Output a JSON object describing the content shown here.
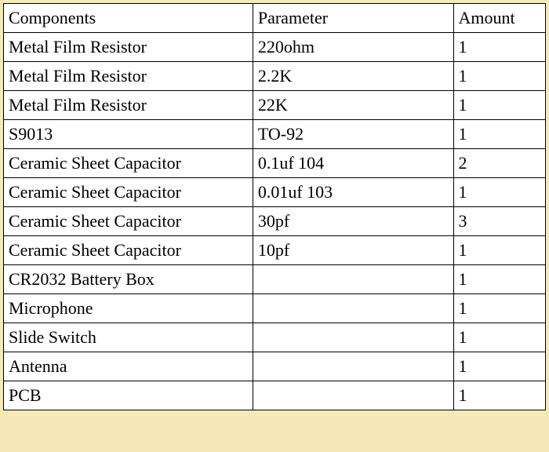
{
  "table": {
    "type": "table",
    "background_color": "#ffffff",
    "border_color": "#000000",
    "text_color": "#000000",
    "font_family": "Times New Roman",
    "font_size": 22,
    "columns": [
      {
        "key": "components",
        "label": "Components",
        "width_pct": 46,
        "align": "left"
      },
      {
        "key": "parameter",
        "label": "Parameter",
        "width_pct": 37,
        "align": "left"
      },
      {
        "key": "amount",
        "label": "Amount",
        "width_pct": 17,
        "align": "left"
      }
    ],
    "rows": [
      {
        "components": "Metal Film Resistor",
        "parameter": "220ohm",
        "amount": "1"
      },
      {
        "components": "Metal Film Resistor",
        "parameter": "2.2K",
        "amount": "1"
      },
      {
        "components": "Metal Film Resistor",
        "parameter": "22K",
        "amount": "1"
      },
      {
        "components": "S9013",
        "parameter": "TO-92",
        "amount": "1"
      },
      {
        "components": "Ceramic Sheet Capacitor",
        "parameter": "0.1uf 104",
        "amount": "2"
      },
      {
        "components": "Ceramic Sheet Capacitor",
        "parameter": "0.01uf 103",
        "amount": "1"
      },
      {
        "components": "Ceramic Sheet Capacitor",
        "parameter": "30pf",
        "amount": "3"
      },
      {
        "components": "Ceramic Sheet Capacitor",
        "parameter": "10pf",
        "amount": "1"
      },
      {
        "components": "CR2032 Battery Box",
        "parameter": "",
        "amount": "1"
      },
      {
        "components": "Microphone",
        "parameter": "",
        "amount": "1"
      },
      {
        "components": "Slide Switch",
        "parameter": "",
        "amount": "1"
      },
      {
        "components": "Antenna",
        "parameter": "",
        "amount": "1"
      },
      {
        "components": "PCB",
        "parameter": "",
        "amount": "1"
      }
    ]
  },
  "page_background_color": "#f5e9b8"
}
